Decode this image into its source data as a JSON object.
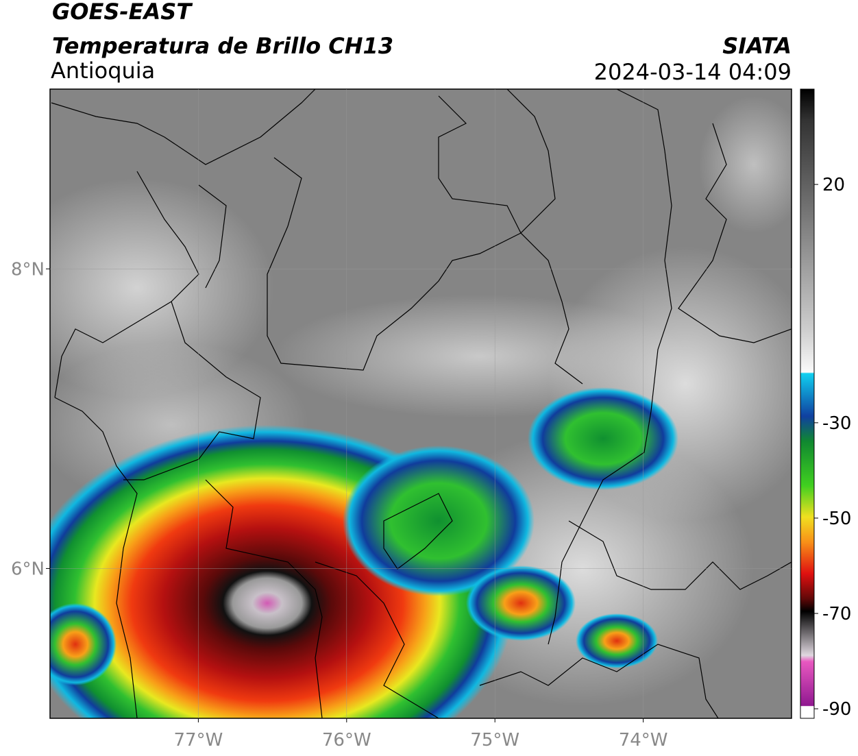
{
  "header": {
    "satellite": "GOES-EAST",
    "title": "Temperatura de Brillo CH13",
    "region": "Antioquia",
    "source": "SIATA",
    "datetime": "2024-03-14 04:09"
  },
  "map": {
    "xlim": [
      -78,
      -73
    ],
    "ylim": [
      5,
      9.2
    ],
    "xticks": [
      {
        "value": -77,
        "label": "77°W"
      },
      {
        "value": -76,
        "label": "76°W"
      },
      {
        "value": -75,
        "label": "75°W"
      },
      {
        "value": -74,
        "label": "74°W"
      }
    ],
    "yticks": [
      {
        "value": 8,
        "label": "8°N"
      },
      {
        "value": 6,
        "label": "6°N"
      }
    ],
    "grid": true
  },
  "colorbar": {
    "lim": [
      -92,
      40
    ],
    "ticks": [
      20,
      -30,
      -50,
      -70,
      -90
    ]
  }
}
